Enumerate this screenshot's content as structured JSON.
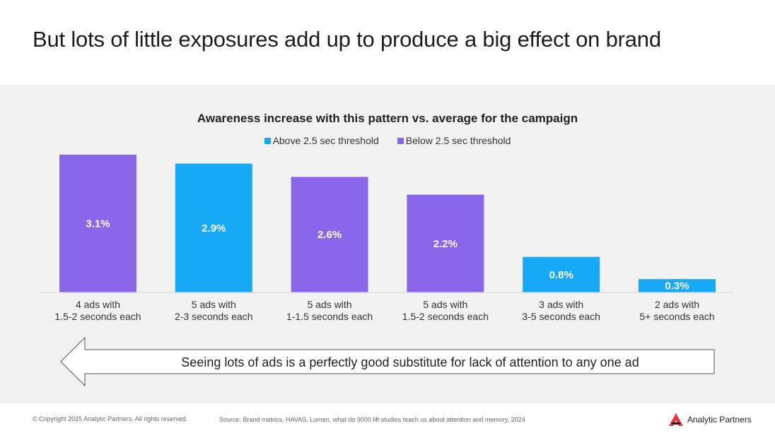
{
  "slide": {
    "title": "But lots of little exposures add up to produce a big effect on brand"
  },
  "colors": {
    "above": "#17a9f5",
    "below": "#8a66ea",
    "panel": "#f2f2f2",
    "logo": "#e8343a"
  },
  "chart_data": {
    "type": "bar",
    "title": "Awareness increase with this pattern vs. average for the campaign",
    "legend": [
      {
        "key": "above",
        "label": "Above 2.5 sec threshold"
      },
      {
        "key": "below",
        "label": "Below 2.5 sec threshold"
      }
    ],
    "legend_position": "top-center",
    "categories": [
      [
        "4 ads with",
        "1.5-2 seconds each"
      ],
      [
        "5 ads with",
        "2-3 seconds each"
      ],
      [
        "5 ads with",
        "1-1.5 seconds each"
      ],
      [
        "5 ads with",
        "1.5-2 seconds each"
      ],
      [
        "3 ads with",
        "3-5 seconds each"
      ],
      [
        "2 ads with",
        "5+ seconds each"
      ]
    ],
    "values": [
      3.1,
      2.9,
      2.6,
      2.2,
      0.8,
      0.3
    ],
    "value_labels": [
      "3.1%",
      "2.9%",
      "2.6%",
      "2.2%",
      "0.8%",
      "0.3%"
    ],
    "series_of_bar": [
      "below",
      "above",
      "below",
      "below",
      "above",
      "above"
    ],
    "ylabel": "",
    "xlabel": "",
    "ylim": [
      0,
      3.1
    ],
    "grid": false
  },
  "callout": {
    "text": "Seeing lots of ads is a perfectly good substitute for lack of attention to any one ad"
  },
  "footer": {
    "copyright": "© Copyright 2025 Analytic Partners. All rights reserved.",
    "source": "Source: Brand metrics, HAVAS, Lumen, what do 9000 lift studies teach us about attention and memory, 2024",
    "brand": "Analytic Partners"
  }
}
